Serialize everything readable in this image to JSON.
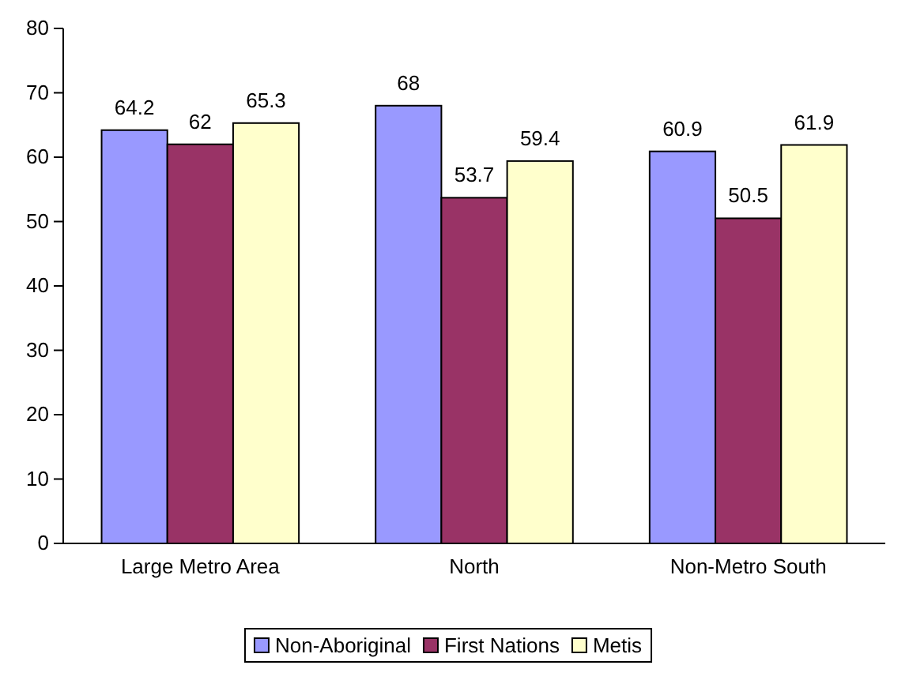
{
  "chart_data": {
    "type": "bar",
    "categories": [
      "Large Metro Area",
      "North",
      "Non-Metro South"
    ],
    "series": [
      {
        "name": "Non-Aboriginal",
        "color": "#9999ff",
        "values": [
          64.2,
          68,
          60.9
        ]
      },
      {
        "name": "First Nations",
        "color": "#993366",
        "values": [
          62,
          53.7,
          50.5
        ]
      },
      {
        "name": "Metis",
        "color": "#ffffcc",
        "values": [
          65.3,
          59.4,
          61.9
        ]
      }
    ],
    "ylim": [
      0,
      80
    ],
    "yticks": [
      0,
      10,
      20,
      30,
      40,
      50,
      60,
      70,
      80
    ],
    "grid": false,
    "legend": "bottom",
    "data_labels": true
  }
}
